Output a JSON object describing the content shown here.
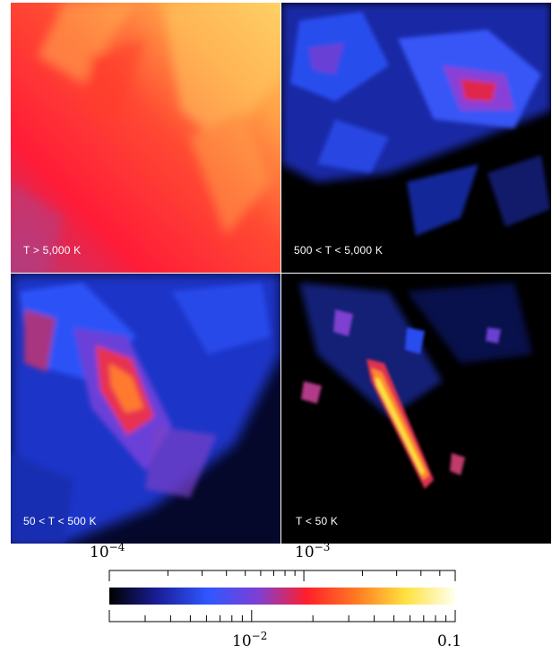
{
  "panels": [
    {
      "label": "T > 5,000 K"
    },
    {
      "label": "500 < T < 5,000 K"
    },
    {
      "label": "50 < T < 500 K"
    },
    {
      "label": "T < 50 K"
    }
  ],
  "colorbar": {
    "colors": [
      "#000000",
      "#1b1f9a",
      "#2f57ff",
      "#7d3fd6",
      "#ff1f2a",
      "#ff7a22",
      "#ffe240",
      "#fffff0"
    ],
    "top_axis": {
      "ticks": [
        "10-4",
        "10-3"
      ],
      "base": "10",
      "exponents": [
        "−4",
        "−3"
      ]
    },
    "bottom_axis": {
      "ticks": [
        "10-2",
        "0.1"
      ],
      "base": "10",
      "exponent": "−2",
      "right_label": "0.1"
    }
  }
}
